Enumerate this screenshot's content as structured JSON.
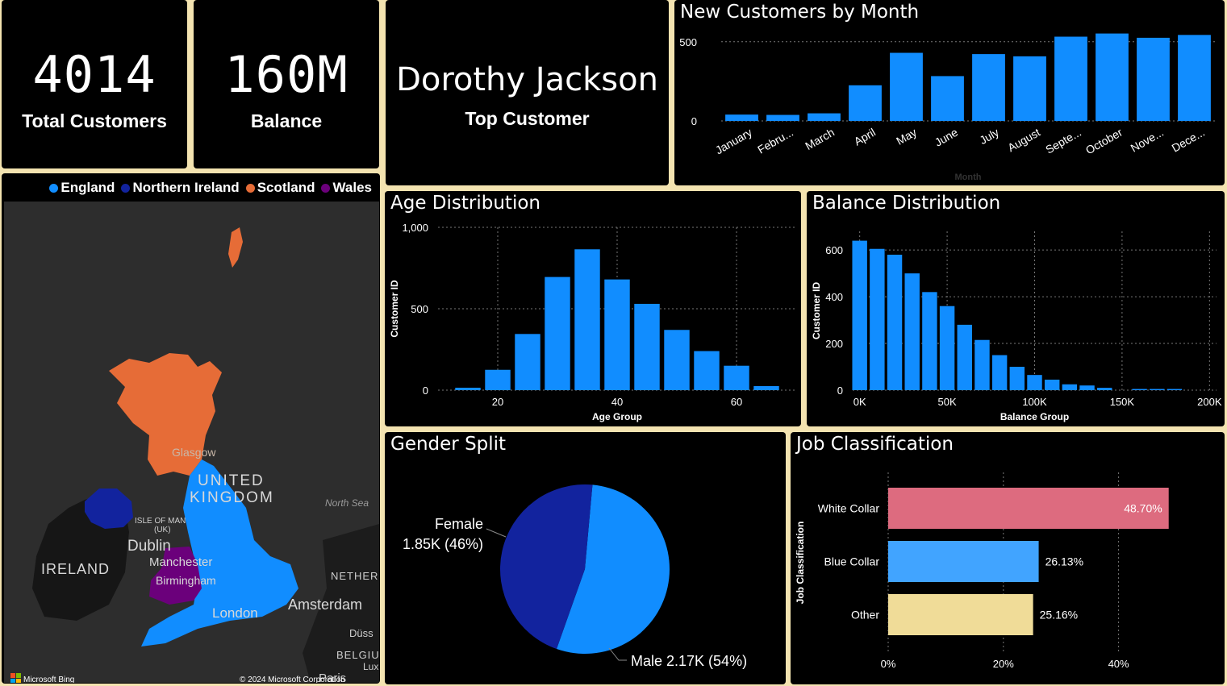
{
  "kpis": {
    "total_customers": {
      "value": "4014",
      "label": "Total Customers"
    },
    "balance": {
      "value": "160M",
      "label": "Balance"
    },
    "top_customer": {
      "value": "Dorothy Jackson",
      "label": "Top Customer"
    }
  },
  "map": {
    "legend": [
      {
        "label": "England",
        "color": "#118dff"
      },
      {
        "label": "Northern Ireland",
        "color": "#12239e"
      },
      {
        "label": "Scotland",
        "color": "#e66c37"
      },
      {
        "label": "Wales",
        "color": "#6b007b"
      }
    ],
    "labels": {
      "glasgow": "Glasgow",
      "united": "UNITED",
      "kingdom": "KINGDOM",
      "north_sea": "North Sea",
      "isle_of_man": "ISLE OF MAN",
      "uk": "(UK)",
      "dublin": "Dublin",
      "ireland": "IRELAND",
      "manchester": "Manchester",
      "birmingham": "Birmingham",
      "netherlands": "NETHER",
      "london": "London",
      "amsterdam": "Amsterdam",
      "dusseldorf": "Düss",
      "belgium": "BELGIU",
      "lux": "Lux",
      "paris": "Paris"
    },
    "attribution": "Microsoft Bing",
    "copyright": "© 2024 Microsoft Corporation"
  },
  "new_customers": {
    "title": "New Customers by Month",
    "chart_data": {
      "type": "bar",
      "categories": [
        "January",
        "Febru...",
        "March",
        "April",
        "May",
        "June",
        "July",
        "August",
        "Septe...",
        "October",
        "Nove...",
        "Dece..."
      ],
      "values": [
        40,
        38,
        48,
        225,
        430,
        283,
        422,
        408,
        532,
        552,
        525,
        543
      ],
      "xlabel": "Month",
      "ylim": [
        0,
        560
      ],
      "yticks": [
        0,
        500
      ],
      "color": "#118dff"
    }
  },
  "age": {
    "title": "Age Distribution",
    "chart_data": {
      "type": "bar",
      "x": [
        15,
        20,
        25,
        30,
        35,
        40,
        45,
        50,
        55,
        60,
        65
      ],
      "values": [
        15,
        125,
        345,
        695,
        865,
        680,
        530,
        370,
        240,
        150,
        25
      ],
      "xlabel": "Age Group",
      "ylabel": "Customer ID",
      "xlim": [
        10,
        70
      ],
      "xticks": [
        20,
        40,
        60
      ],
      "ylim": [
        0,
        1000
      ],
      "yticks": [
        0,
        500,
        1000
      ],
      "ytick_labels": [
        "0",
        "500",
        "1,000"
      ],
      "color": "#118dff"
    }
  },
  "balance_dist": {
    "title": "Balance Distribution",
    "chart_data": {
      "type": "bar",
      "x": [
        0,
        10000,
        20000,
        30000,
        40000,
        50000,
        60000,
        70000,
        80000,
        90000,
        100000,
        110000,
        120000,
        130000,
        140000,
        160000,
        170000,
        180000
      ],
      "values": [
        640,
        605,
        580,
        500,
        420,
        360,
        280,
        215,
        150,
        100,
        65,
        45,
        25,
        20,
        10,
        5,
        5,
        5
      ],
      "xlabel": "Balance Group",
      "ylabel": "Customer ID",
      "xlim": [
        -4000,
        204000
      ],
      "xticks": [
        0,
        50000,
        100000,
        150000,
        200000
      ],
      "xtick_labels": [
        "0K",
        "50K",
        "100K",
        "150K",
        "200K"
      ],
      "ylim": [
        0,
        680
      ],
      "yticks": [
        0,
        200,
        400,
        600
      ],
      "color": "#118dff"
    }
  },
  "gender": {
    "title": "Gender Split",
    "chart_data": {
      "type": "pie",
      "slices": [
        {
          "label": "Female",
          "value": 1850,
          "display": "1.85K (46%)",
          "color": "#12239e"
        },
        {
          "label": "Male",
          "value": 2170,
          "display": "2.17K (54%)",
          "color": "#118dff"
        }
      ]
    }
  },
  "job": {
    "title": "Job Classification",
    "chart_data": {
      "type": "bar",
      "orientation": "horizontal",
      "categories": [
        "White Collar",
        "Blue Collar",
        "Other"
      ],
      "values": [
        48.7,
        26.13,
        25.16
      ],
      "value_labels": [
        "48.70%",
        "26.13%",
        "25.16%"
      ],
      "colors": [
        "#dd6b7f",
        "#41a4ff",
        "#f0dc98"
      ],
      "ylabel": "Job Classification",
      "xlim": [
        0,
        50
      ],
      "xticks": [
        0,
        20,
        40
      ],
      "xtick_labels": [
        "0%",
        "20%",
        "40%"
      ]
    }
  }
}
